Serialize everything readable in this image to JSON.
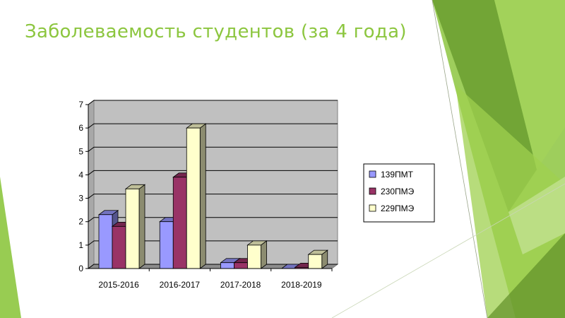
{
  "slide": {
    "title": "Заболеваемость студентов (за 4 года)",
    "accent_color": "#8cc63f"
  },
  "chart_data": {
    "type": "bar",
    "title": "",
    "xlabel": "",
    "ylabel": "",
    "ylim": [
      0,
      7
    ],
    "yticks": [
      "0",
      "1",
      "2",
      "3",
      "4",
      "5",
      "6",
      "7"
    ],
    "categories": [
      "2015-2016",
      "2016-2017",
      "2017-2018",
      "2018-2019"
    ],
    "series": [
      {
        "name": "139ПМТ",
        "color": "#9999ff",
        "values": [
          2.3,
          2.0,
          0.25,
          0.0
        ]
      },
      {
        "name": "230ПМЭ",
        "color": "#993366",
        "values": [
          1.8,
          3.9,
          0.25,
          0.05
        ]
      },
      {
        "name": "229ПМЭ",
        "color": "#ffffcc",
        "values": [
          3.4,
          6.0,
          1.0,
          0.6
        ]
      }
    ],
    "grid": true,
    "legend": "right",
    "plot_background": "#c0c0c0"
  }
}
